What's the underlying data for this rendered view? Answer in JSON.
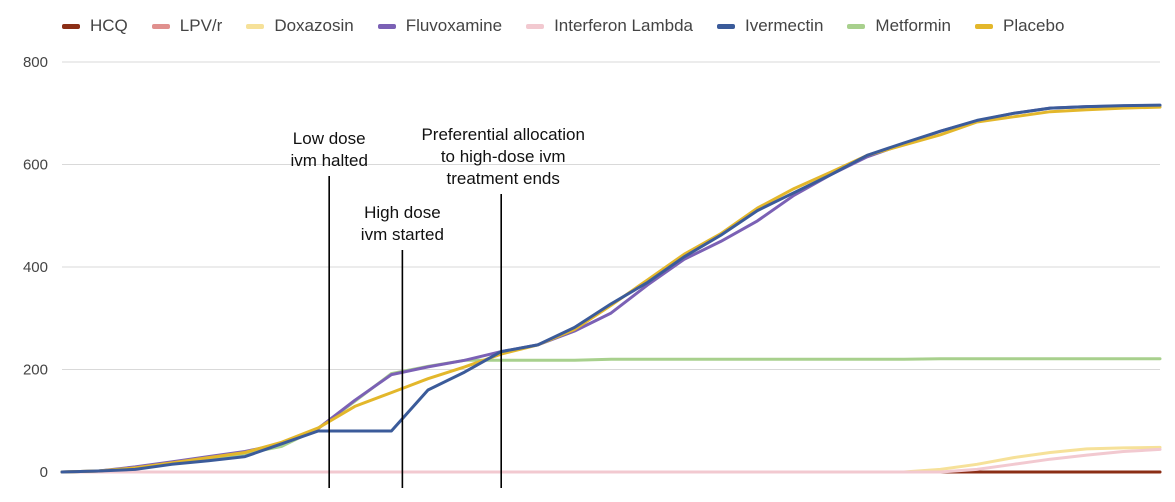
{
  "chart_data": {
    "type": "line",
    "title": "",
    "xlabel": "",
    "ylabel": "",
    "ylim": [
      0,
      800
    ],
    "yticks": [
      "0",
      "200",
      "400",
      "600",
      "800"
    ],
    "xlim": [
      0,
      30
    ],
    "grid": true,
    "legend_position": "top",
    "series": [
      {
        "name": "HCQ",
        "color": "#8b2e16",
        "x": [
          0,
          30
        ],
        "y": [
          0,
          0
        ]
      },
      {
        "name": "LPV/r",
        "color": "#e0908e",
        "x": [
          0,
          30
        ],
        "y": [
          0,
          0
        ]
      },
      {
        "name": "Doxazosin",
        "color": "#f6e199",
        "x": [
          0,
          23,
          24,
          25,
          26,
          27,
          28,
          29,
          30
        ],
        "y": [
          0,
          0,
          5,
          15,
          28,
          38,
          45,
          47,
          48
        ]
      },
      {
        "name": "Fluvoxamine",
        "color": "#7b61b5",
        "x": [
          0,
          1,
          2,
          3,
          4,
          5,
          6,
          7,
          8,
          9,
          10,
          11,
          12,
          13,
          14,
          15,
          16,
          17,
          18,
          19,
          20,
          21,
          22,
          23,
          24,
          25,
          26,
          27,
          28,
          29,
          30
        ],
        "y": [
          0,
          2,
          10,
          20,
          30,
          40,
          55,
          85,
          140,
          190,
          205,
          218,
          235,
          248,
          275,
          310,
          365,
          415,
          450,
          490,
          540,
          580,
          615,
          640,
          665,
          685,
          700,
          710,
          713,
          714,
          715
        ]
      },
      {
        "name": "Interferon Lambda",
        "color": "#f2c9d0",
        "x": [
          0,
          24,
          25,
          26,
          27,
          28,
          29,
          30
        ],
        "y": [
          0,
          0,
          5,
          15,
          25,
          33,
          40,
          44
        ]
      },
      {
        "name": "Ivermectin",
        "color": "#3b5b9a",
        "x": [
          0,
          1,
          2,
          3,
          4,
          5,
          6,
          7,
          8,
          9,
          10,
          11,
          12,
          13,
          14,
          15,
          16,
          17,
          18,
          19,
          20,
          21,
          22,
          23,
          24,
          25,
          26,
          27,
          28,
          29,
          30
        ],
        "y": [
          0,
          2,
          5,
          15,
          22,
          30,
          55,
          80,
          80,
          80,
          160,
          195,
          235,
          248,
          282,
          328,
          370,
          420,
          462,
          510,
          545,
          580,
          618,
          642,
          665,
          686,
          700,
          710,
          713,
          715,
          716
        ]
      },
      {
        "name": "Metformin",
        "color": "#a8d08d",
        "x": [
          0,
          1,
          2,
          3,
          4,
          5,
          6,
          7,
          8,
          9,
          10,
          11,
          12,
          13,
          14,
          15,
          16,
          17,
          18,
          19,
          20,
          21,
          22,
          23,
          24,
          25,
          26,
          27,
          28,
          29,
          30
        ],
        "y": [
          0,
          2,
          8,
          16,
          25,
          36,
          50,
          85,
          138,
          192,
          206,
          218,
          218,
          218,
          218,
          220,
          220,
          220,
          220,
          220,
          220,
          220,
          220,
          220,
          221,
          221,
          221,
          221,
          221,
          221,
          221
        ]
      },
      {
        "name": "Placebo",
        "color": "#e3b72b",
        "x": [
          0,
          1,
          2,
          3,
          4,
          5,
          6,
          7,
          8,
          9,
          10,
          11,
          12,
          13,
          14,
          15,
          16,
          17,
          18,
          19,
          20,
          21,
          22,
          23,
          24,
          25,
          26,
          27,
          28,
          29,
          30
        ],
        "y": [
          0,
          2,
          8,
          18,
          28,
          38,
          58,
          86,
          128,
          155,
          182,
          205,
          230,
          248,
          278,
          325,
          375,
          425,
          465,
          515,
          553,
          585,
          618,
          638,
          658,
          683,
          693,
          703,
          707,
          710,
          712
        ]
      }
    ],
    "annotations": [
      {
        "x": 7.3,
        "lines": [
          "Low dose",
          "ivm halted"
        ]
      },
      {
        "x": 9.3,
        "lines": [
          "High dose",
          "ivm started"
        ]
      },
      {
        "x": 12.0,
        "lines": [
          "Preferential allocation",
          "to high-dose ivm",
          "treatment ends"
        ]
      }
    ]
  }
}
